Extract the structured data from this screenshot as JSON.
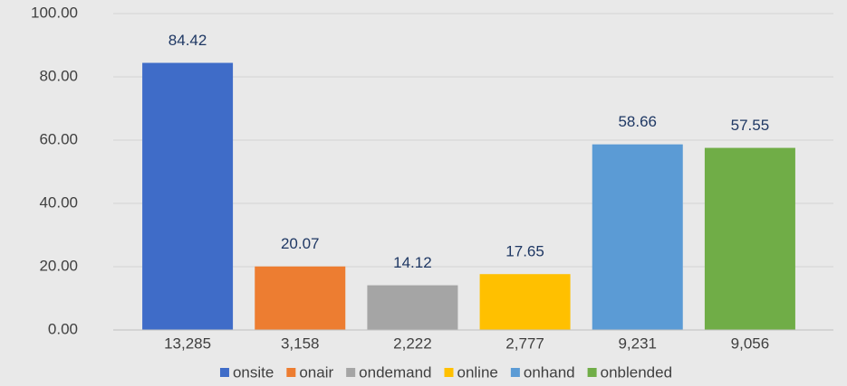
{
  "chart_data": {
    "type": "bar",
    "categories": [
      "13,285",
      "3,158",
      "2,222",
      "2,777",
      "9,231",
      "9,056"
    ],
    "values": [
      84.42,
      20.07,
      14.12,
      17.65,
      58.66,
      57.55
    ],
    "colors": [
      "#3f6cc8",
      "#ed7d31",
      "#a5a5a5",
      "#ffc000",
      "#5b9bd5",
      "#70ad47"
    ],
    "legend": [
      "onsite",
      "onair",
      "ondemand",
      "online",
      "onhand",
      "onblended"
    ],
    "ylim": [
      0,
      100
    ],
    "yticks": [
      {
        "value": 0,
        "label": "0.00"
      },
      {
        "value": 20,
        "label": "20.00"
      },
      {
        "value": 40,
        "label": "40.00"
      },
      {
        "value": 60,
        "label": "60.00"
      },
      {
        "value": 80,
        "label": "80.00"
      },
      {
        "value": 100,
        "label": "100.00"
      }
    ],
    "grid": true
  }
}
